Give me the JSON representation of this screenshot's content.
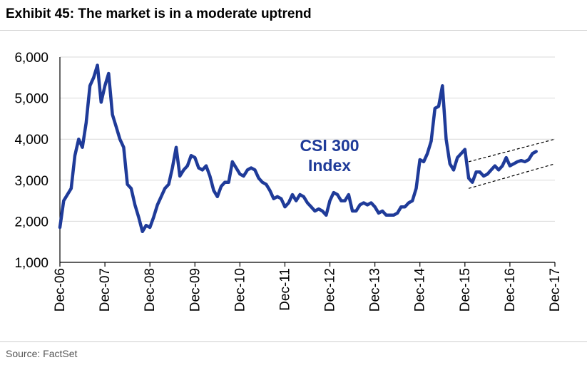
{
  "header": {
    "title": "Exhibit 45: The market is in a moderate uptrend"
  },
  "footer": {
    "source": "Source: FactSet"
  },
  "colors": {
    "series": "#1f3b99",
    "channel": "#000000",
    "axis": "#000000"
  },
  "chart_data": {
    "type": "line",
    "title": "Exhibit 45: The market is in a moderate uptrend",
    "xlabel": "",
    "ylabel": "",
    "ylim": [
      1000,
      6000
    ],
    "xlim": [
      "2006-12",
      "2017-12"
    ],
    "y_ticks": [
      "1,000",
      "2,000",
      "3,000",
      "4,000",
      "5,000",
      "6,000"
    ],
    "x_ticks": [
      "Dec-06",
      "Dec-07",
      "Dec-08",
      "Dec-09",
      "Dec-10",
      "Dec-11",
      "Dec-12",
      "Dec-13",
      "Dec-14",
      "Dec-15",
      "Dec-16",
      "Dec-17"
    ],
    "grid": "horizontal",
    "annotation": {
      "lines": [
        "CSI 300",
        "Index"
      ]
    },
    "series": [
      {
        "name": "CSI 300 Index",
        "points": [
          [
            "2006-12",
            1850
          ],
          [
            "2007-01",
            2500
          ],
          [
            "2007-02",
            2650
          ],
          [
            "2007-03",
            2800
          ],
          [
            "2007-04",
            3600
          ],
          [
            "2007-05",
            4000
          ],
          [
            "2007-06",
            3800
          ],
          [
            "2007-07",
            4400
          ],
          [
            "2007-08",
            5300
          ],
          [
            "2007-09",
            5500
          ],
          [
            "2007-10",
            5800
          ],
          [
            "2007-11",
            4900
          ],
          [
            "2007-12",
            5300
          ],
          [
            "2008-01",
            5600
          ],
          [
            "2008-02",
            4600
          ],
          [
            "2008-03",
            4300
          ],
          [
            "2008-04",
            4000
          ],
          [
            "2008-05",
            3800
          ],
          [
            "2008-06",
            2900
          ],
          [
            "2008-07",
            2800
          ],
          [
            "2008-08",
            2400
          ],
          [
            "2008-09",
            2100
          ],
          [
            "2008-10",
            1750
          ],
          [
            "2008-11",
            1900
          ],
          [
            "2008-12",
            1850
          ],
          [
            "2009-01",
            2100
          ],
          [
            "2009-02",
            2400
          ],
          [
            "2009-03",
            2600
          ],
          [
            "2009-04",
            2800
          ],
          [
            "2009-05",
            2900
          ],
          [
            "2009-06",
            3300
          ],
          [
            "2009-07",
            3800
          ],
          [
            "2009-08",
            3100
          ],
          [
            "2009-09",
            3250
          ],
          [
            "2009-10",
            3350
          ],
          [
            "2009-11",
            3600
          ],
          [
            "2009-12",
            3550
          ],
          [
            "2010-01",
            3300
          ],
          [
            "2010-02",
            3250
          ],
          [
            "2010-03",
            3350
          ],
          [
            "2010-04",
            3100
          ],
          [
            "2010-05",
            2750
          ],
          [
            "2010-06",
            2600
          ],
          [
            "2010-07",
            2850
          ],
          [
            "2010-08",
            2950
          ],
          [
            "2010-09",
            2950
          ],
          [
            "2010-10",
            3450
          ],
          [
            "2010-11",
            3300
          ],
          [
            "2010-12",
            3150
          ],
          [
            "2011-01",
            3100
          ],
          [
            "2011-02",
            3250
          ],
          [
            "2011-03",
            3300
          ],
          [
            "2011-04",
            3250
          ],
          [
            "2011-05",
            3050
          ],
          [
            "2011-06",
            2950
          ],
          [
            "2011-07",
            2900
          ],
          [
            "2011-08",
            2750
          ],
          [
            "2011-09",
            2550
          ],
          [
            "2011-10",
            2600
          ],
          [
            "2011-11",
            2550
          ],
          [
            "2011-12",
            2350
          ],
          [
            "2012-01",
            2450
          ],
          [
            "2012-02",
            2650
          ],
          [
            "2012-03",
            2500
          ],
          [
            "2012-04",
            2650
          ],
          [
            "2012-05",
            2600
          ],
          [
            "2012-06",
            2450
          ],
          [
            "2012-07",
            2350
          ],
          [
            "2012-08",
            2250
          ],
          [
            "2012-09",
            2300
          ],
          [
            "2012-10",
            2250
          ],
          [
            "2012-11",
            2150
          ],
          [
            "2012-12",
            2500
          ],
          [
            "2013-01",
            2700
          ],
          [
            "2013-02",
            2650
          ],
          [
            "2013-03",
            2500
          ],
          [
            "2013-04",
            2500
          ],
          [
            "2013-05",
            2650
          ],
          [
            "2013-06",
            2250
          ],
          [
            "2013-07",
            2250
          ],
          [
            "2013-08",
            2400
          ],
          [
            "2013-09",
            2450
          ],
          [
            "2013-10",
            2400
          ],
          [
            "2013-11",
            2450
          ],
          [
            "2013-12",
            2350
          ],
          [
            "2014-01",
            2200
          ],
          [
            "2014-02",
            2250
          ],
          [
            "2014-03",
            2150
          ],
          [
            "2014-04",
            2150
          ],
          [
            "2014-05",
            2150
          ],
          [
            "2014-06",
            2200
          ],
          [
            "2014-07",
            2350
          ],
          [
            "2014-08",
            2350
          ],
          [
            "2014-09",
            2450
          ],
          [
            "2014-10",
            2500
          ],
          [
            "2014-11",
            2800
          ],
          [
            "2014-12",
            3500
          ],
          [
            "2015-01",
            3450
          ],
          [
            "2015-02",
            3650
          ],
          [
            "2015-03",
            3950
          ],
          [
            "2015-04",
            4750
          ],
          [
            "2015-05",
            4800
          ],
          [
            "2015-06",
            5300
          ],
          [
            "2015-07",
            4000
          ],
          [
            "2015-08",
            3400
          ],
          [
            "2015-09",
            3250
          ],
          [
            "2015-10",
            3550
          ],
          [
            "2015-11",
            3650
          ],
          [
            "2015-12",
            3750
          ],
          [
            "2016-01",
            3050
          ],
          [
            "2016-02",
            2950
          ],
          [
            "2016-03",
            3200
          ],
          [
            "2016-04",
            3200
          ],
          [
            "2016-05",
            3100
          ],
          [
            "2016-06",
            3150
          ],
          [
            "2016-07",
            3250
          ],
          [
            "2016-08",
            3350
          ],
          [
            "2016-09",
            3250
          ],
          [
            "2016-10",
            3350
          ],
          [
            "2016-11",
            3550
          ],
          [
            "2016-12",
            3350
          ],
          [
            "2017-01",
            3400
          ],
          [
            "2017-02",
            3450
          ],
          [
            "2017-03",
            3480
          ],
          [
            "2017-04",
            3450
          ],
          [
            "2017-05",
            3500
          ],
          [
            "2017-06",
            3650
          ],
          [
            "2017-07",
            3700
          ]
        ]
      }
    ],
    "trend_channel": [
      {
        "from": [
          "2016-01",
          3450
        ],
        "to": [
          "2017-12",
          4000
        ]
      },
      {
        "from": [
          "2016-01",
          2800
        ],
        "to": [
          "2017-12",
          3400
        ]
      }
    ]
  }
}
